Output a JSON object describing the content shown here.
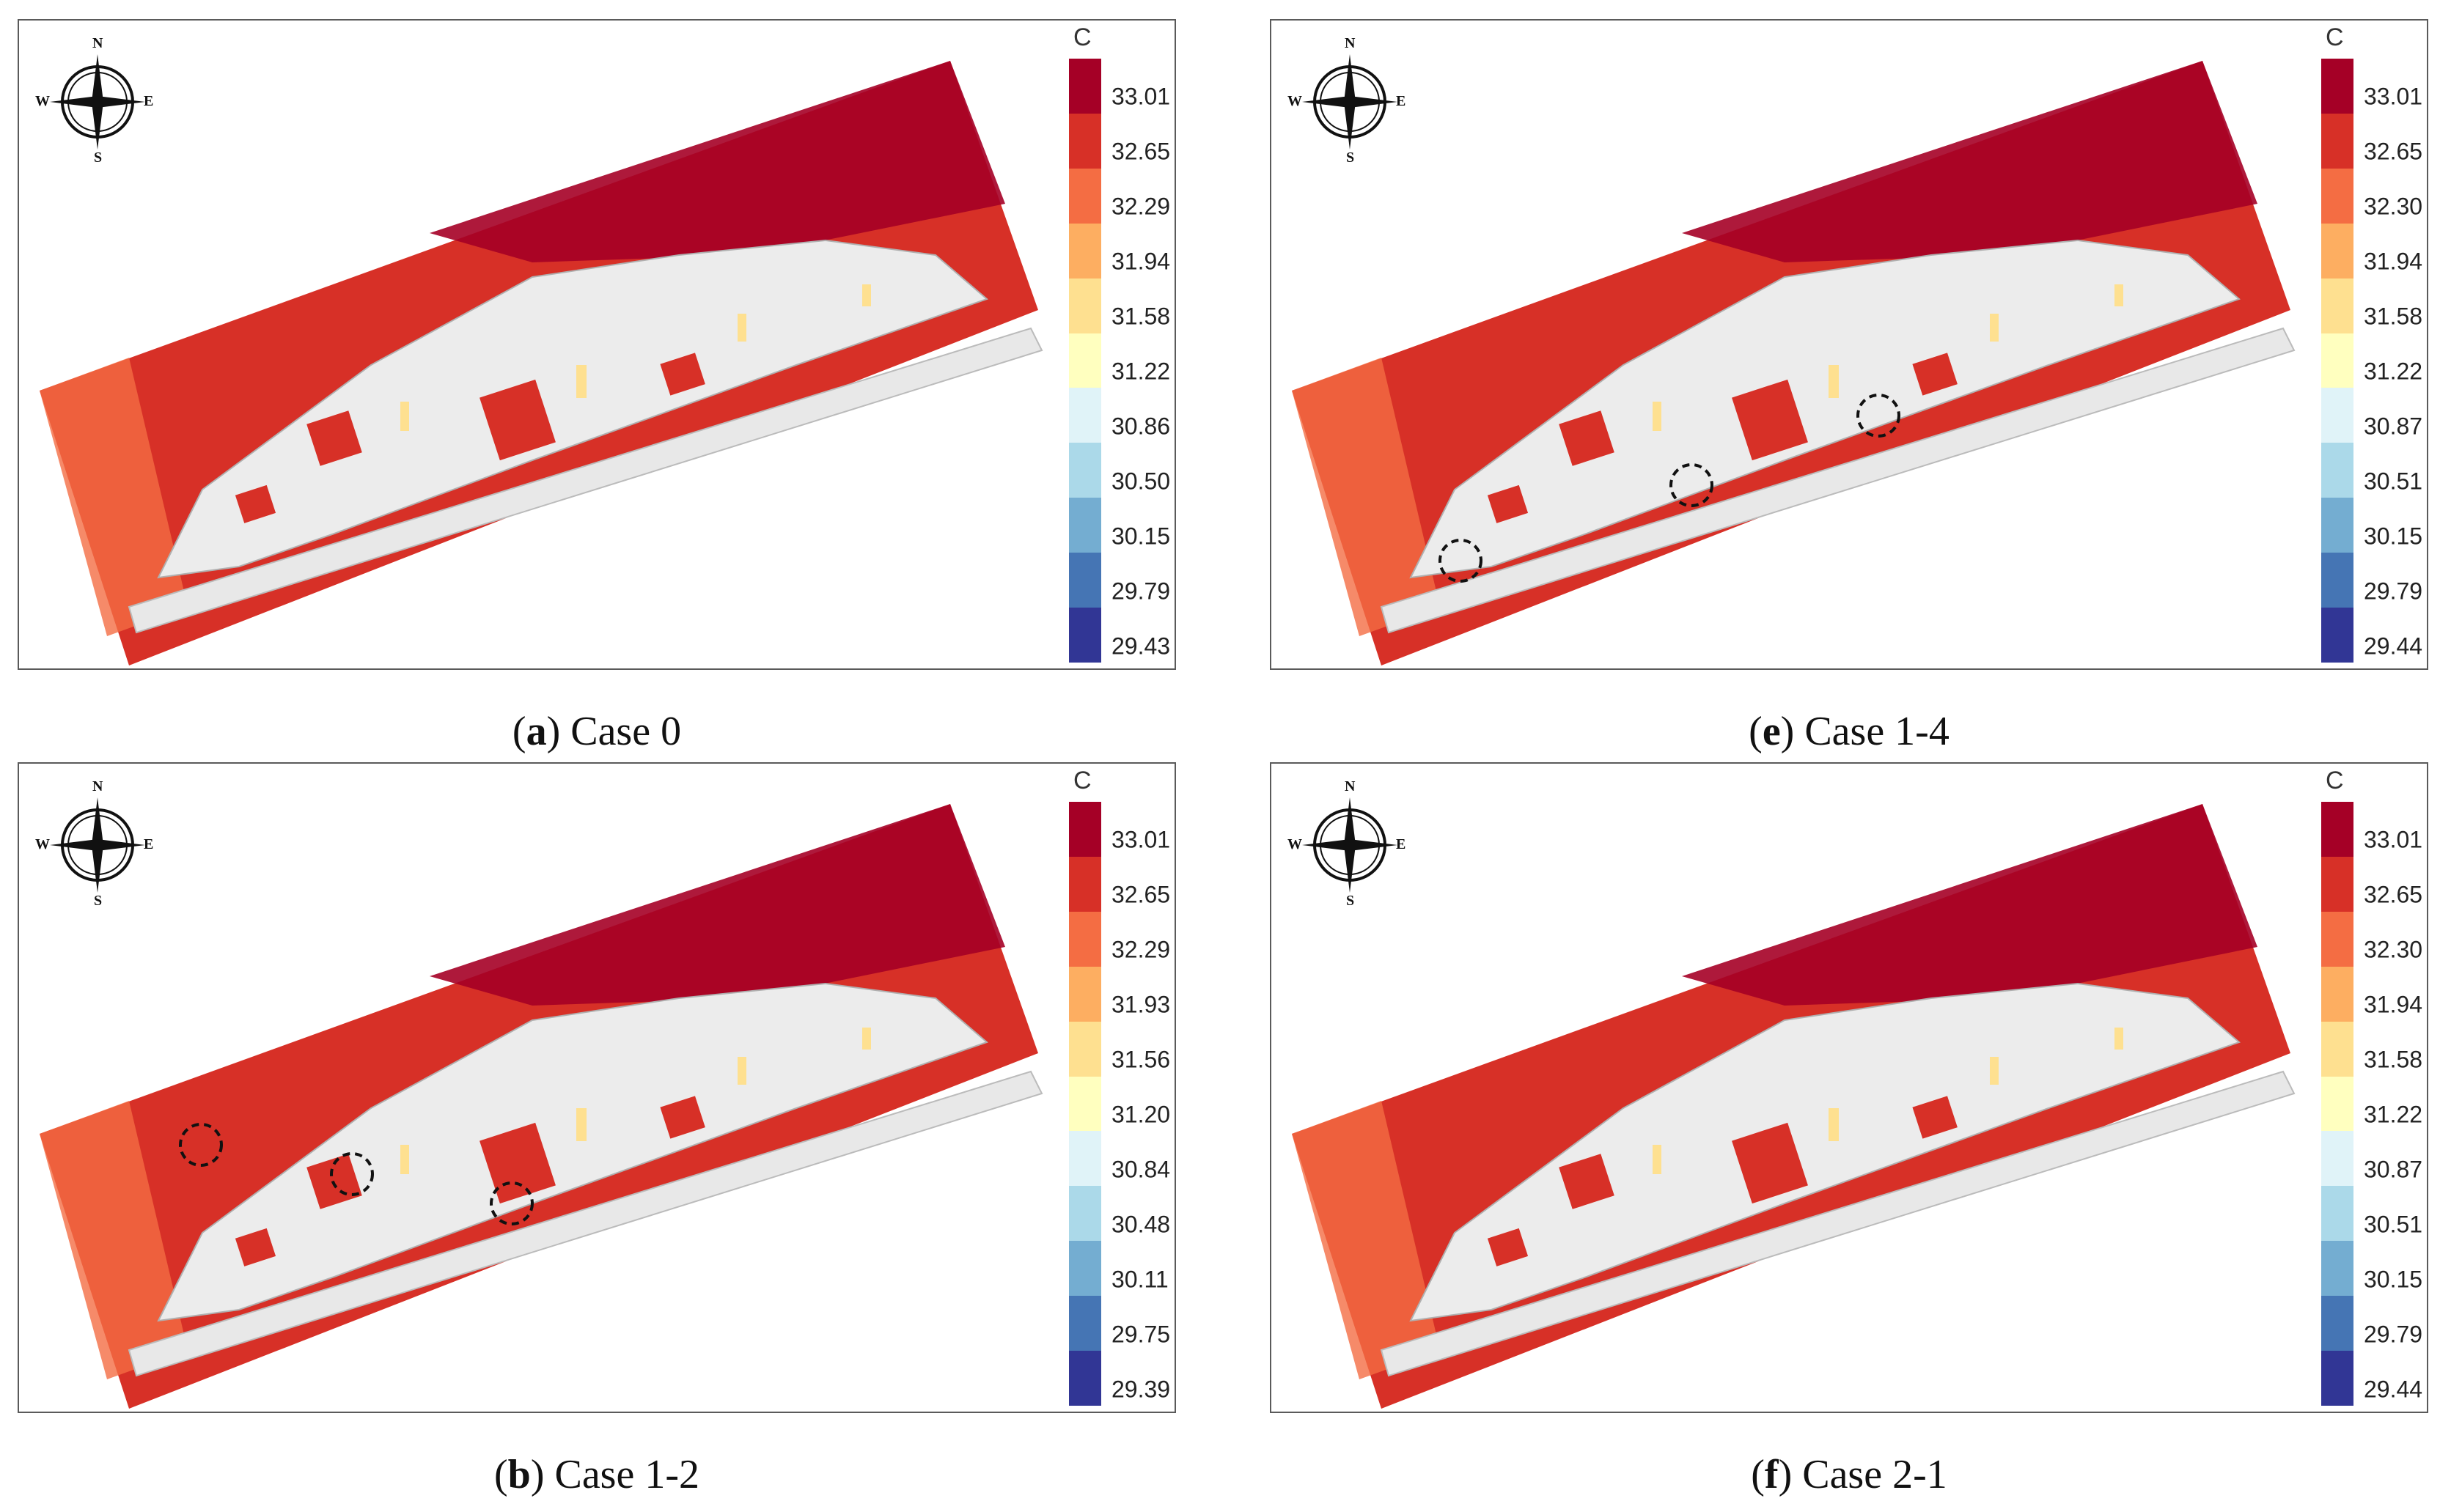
{
  "unit": "C",
  "compass": {
    "n": "N",
    "s": "S",
    "e": "E",
    "w": "W"
  },
  "colors": [
    "#a50026",
    "#d73027",
    "#f46d43",
    "#fdae61",
    "#fee090",
    "#ffffbf",
    "#e0f3f8",
    "#abd9e9",
    "#74add1",
    "#4575b4",
    "#313695"
  ],
  "panels": [
    {
      "id": "a",
      "letter": "a",
      "caption": " Case 0",
      "scale": [
        "33.01",
        "32.65",
        "32.29",
        "31.94",
        "31.58",
        "31.22",
        "30.86",
        "30.50",
        "30.15",
        "29.79",
        "29.43"
      ],
      "markers": []
    },
    {
      "id": "e",
      "letter": "e",
      "caption": " Case 1-4",
      "scale": [
        "33.01",
        "32.65",
        "32.30",
        "31.94",
        "31.58",
        "31.22",
        "30.87",
        "30.51",
        "30.15",
        "29.79",
        "29.44"
      ],
      "markers": [
        "marker-1",
        "marker-2",
        "marker-3"
      ]
    },
    {
      "id": "b",
      "letter": "b",
      "caption": " Case 1-2",
      "scale": [
        "33.01",
        "32.65",
        "32.29",
        "31.93",
        "31.56",
        "31.20",
        "30.84",
        "30.48",
        "30.11",
        "29.75",
        "29.39"
      ],
      "markers": [
        "marker-1",
        "marker-2",
        "marker-3"
      ]
    },
    {
      "id": "f",
      "letter": "f",
      "caption": " Case 2-1",
      "scale": [
        "33.01",
        "32.65",
        "32.30",
        "31.94",
        "31.58",
        "31.22",
        "30.87",
        "30.51",
        "30.15",
        "29.79",
        "29.44"
      ],
      "markers": []
    }
  ]
}
